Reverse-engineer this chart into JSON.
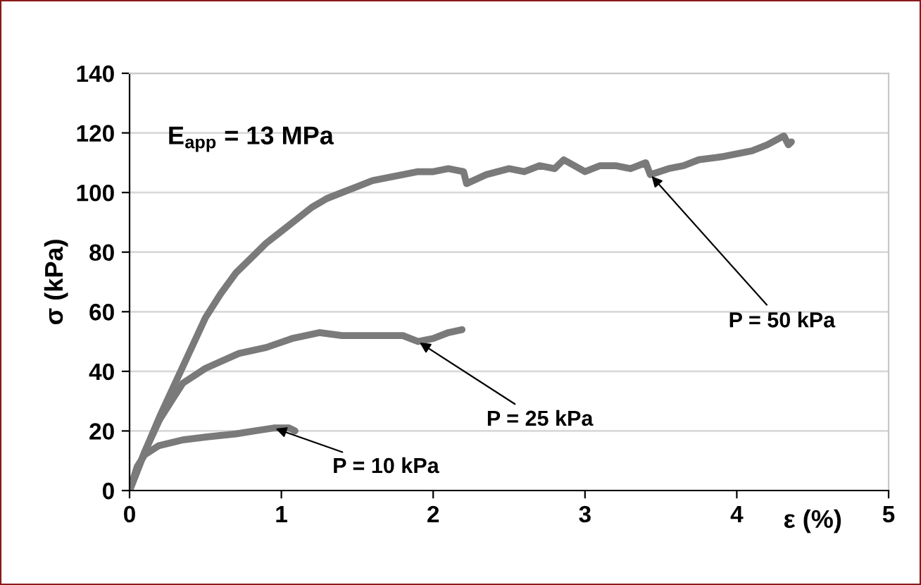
{
  "chart_data": {
    "type": "line",
    "xlabel": "ε (%)",
    "ylabel": "σ (kPa)",
    "xlim": [
      0,
      5
    ],
    "ylim": [
      0,
      140
    ],
    "xticks": [
      0,
      1,
      2,
      3,
      4,
      5
    ],
    "yticks": [
      0,
      20,
      40,
      60,
      80,
      100,
      120,
      140
    ],
    "grid": "y",
    "line_style": "solid",
    "marker": "none",
    "series": [
      {
        "color": "#7a7a7a",
        "x": [
          0,
          0.1,
          0.2,
          0.3,
          0.4,
          0.5,
          0.6,
          0.7,
          0.8,
          0.9,
          1.0,
          1.1,
          1.2,
          1.3,
          1.4,
          1.5,
          1.6,
          1.7,
          1.8,
          1.9,
          2.0,
          2.1,
          2.2,
          2.22,
          2.35,
          2.5,
          2.6,
          2.7,
          2.8,
          2.86,
          3.0,
          3.1,
          3.2,
          3.3,
          3.4,
          3.43,
          3.55,
          3.65,
          3.75,
          3.9,
          4.0,
          4.1,
          4.2,
          4.31,
          4.34,
          4.36
        ],
        "values": [
          0,
          13,
          25,
          36,
          47,
          58,
          66,
          73,
          78,
          83,
          87,
          91,
          95,
          98,
          100,
          102,
          104,
          105,
          106,
          107,
          107,
          108,
          107,
          103,
          106,
          108,
          107,
          109,
          108,
          111,
          107,
          109,
          109,
          108,
          110,
          106,
          108,
          109,
          111,
          112,
          113,
          114,
          116,
          119,
          116,
          117
        ]
      },
      {
        "color": "#7a7a7a",
        "x": [
          0,
          0.1,
          0.2,
          0.35,
          0.5,
          0.72,
          0.9,
          1.07,
          1.25,
          1.4,
          1.62,
          1.8,
          1.9,
          2.0,
          2.1,
          2.19
        ],
        "values": [
          0,
          13,
          24,
          36,
          41,
          46,
          48,
          51,
          53,
          52,
          52,
          52,
          50,
          51,
          53,
          54
        ]
      },
      {
        "color": "#7a7a7a",
        "x": [
          0,
          0.05,
          0.1,
          0.19,
          0.35,
          0.51,
          0.7,
          0.82,
          0.95,
          1.05,
          1.09
        ],
        "values": [
          0,
          8,
          12,
          15,
          17,
          18,
          19,
          20,
          21,
          21,
          20
        ]
      }
    ],
    "annotations": [
      "E$_{app}$ = 13 MPa",
      {
        "text": "P = 50 kPa",
        "x": 3.43,
        "y": 106
      },
      {
        "text": "P = 25 kPa",
        "x": 1.9,
        "y": 50
      },
      {
        "text": "P = 10 kPa",
        "x": 0.95,
        "y": 21
      }
    ]
  }
}
